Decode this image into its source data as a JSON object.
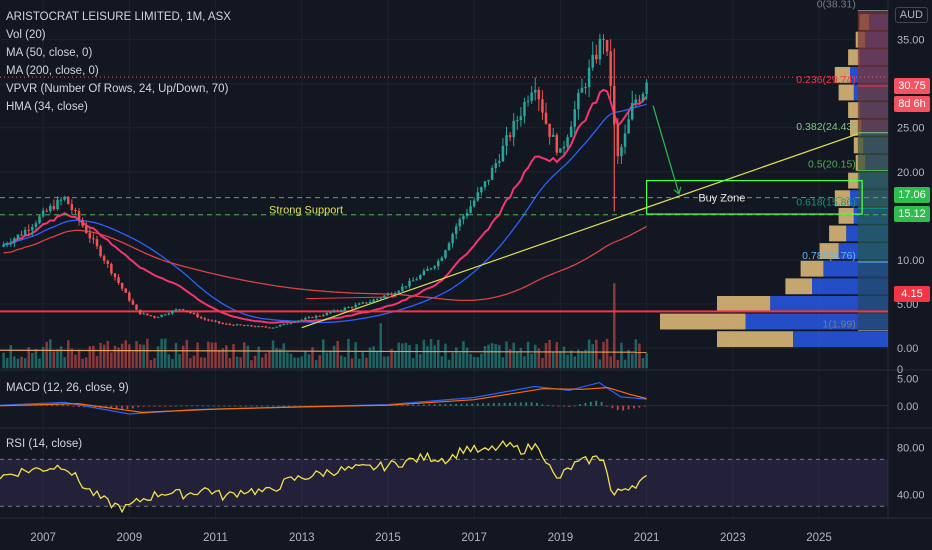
{
  "header": {
    "symbol_line": "ARISTOCRAT LEISURE LIMITED, 1M, ASX",
    "indicators": [
      "Vol (20)",
      "MA (50, close, 0)",
      "MA (200, close, 0)",
      "VPVR (Number Of Rows, 24, Up/Down, 70)",
      "HMA (34, close)"
    ]
  },
  "currency": "AUD",
  "price_tags": {
    "last": {
      "value": "30.75",
      "color": "#f7525f"
    },
    "countdown": {
      "value": "8d 6h",
      "color": "#f7525f"
    },
    "upper_support": {
      "value": "17.06",
      "color": "#2ebd4e"
    },
    "lower_support": {
      "value": "15.12",
      "color": "#2ebd4e"
    },
    "red_line": {
      "value": "4.15",
      "color": "#f23645"
    }
  },
  "chart_data": {
    "type": "candlestick",
    "x_ticks": [
      "2007",
      "2009",
      "2011",
      "2013",
      "2015",
      "2017",
      "2019",
      "2021",
      "2023",
      "2025"
    ],
    "x_range": [
      2006.0,
      2026.6
    ],
    "price_ticks": [
      "35.00",
      "30.00",
      "25.00",
      "20.00",
      "15.00",
      "10.00",
      "5.00",
      "0.00"
    ],
    "price_range": [
      -2.5,
      39.5
    ],
    "price_key_points": [
      [
        2006.0,
        11.5
      ],
      [
        2006.5,
        13.0
      ],
      [
        2007.2,
        16.0
      ],
      [
        2007.5,
        17.0
      ],
      [
        2007.9,
        14.0
      ],
      [
        2008.3,
        11.0
      ],
      [
        2008.8,
        7.0
      ],
      [
        2009.2,
        4.0
      ],
      [
        2009.6,
        3.5
      ],
      [
        2010.2,
        4.5
      ],
      [
        2010.7,
        3.3
      ],
      [
        2011.2,
        2.7
      ],
      [
        2011.8,
        2.5
      ],
      [
        2012.3,
        2.3
      ],
      [
        2012.8,
        3.0
      ],
      [
        2013.5,
        3.8
      ],
      [
        2014.0,
        4.5
      ],
      [
        2014.6,
        5.3
      ],
      [
        2015.2,
        6.5
      ],
      [
        2015.7,
        8.0
      ],
      [
        2016.2,
        10.0
      ],
      [
        2016.6,
        14.0
      ],
      [
        2016.9,
        16.0
      ],
      [
        2017.3,
        19.0
      ],
      [
        2017.7,
        23.0
      ],
      [
        2018.1,
        27.0
      ],
      [
        2018.4,
        30.5
      ],
      [
        2018.7,
        25.0
      ],
      [
        2019.0,
        22.0
      ],
      [
        2019.4,
        28.0
      ],
      [
        2019.8,
        33.0
      ],
      [
        2020.0,
        35.5
      ],
      [
        2020.2,
        29.0
      ],
      [
        2020.3,
        21.0
      ],
      [
        2020.5,
        24.0
      ],
      [
        2020.7,
        28.0
      ],
      [
        2020.9,
        29.0
      ],
      [
        2021.0,
        30.75
      ]
    ],
    "fib_levels": [
      {
        "label": "0(38.31)",
        "value": 38.31,
        "color": "#787b86"
      },
      {
        "label": "0.236(29.74)",
        "value": 29.74,
        "color": "#f23645"
      },
      {
        "label": "0.382(24.43)",
        "value": 24.43,
        "color": "#81c784"
      },
      {
        "label": "0.5(20.15)",
        "value": 20.15,
        "color": "#4caf50"
      },
      {
        "label": "0.618(15.86)",
        "value": 15.86,
        "color": "#089981"
      },
      {
        "label": "0.786(9.76)",
        "value": 9.76,
        "color": "#64b5f6"
      },
      {
        "label": "1(1.99)",
        "value": 1.99,
        "color": "#787b86"
      }
    ],
    "support_lines": [
      17.06,
      15.12
    ],
    "red_horizontal": 4.15,
    "annotations": {
      "strong_support": "Strong Support",
      "buy_zone": "Buy Zone"
    },
    "trendline": {
      "from": [
        2013.0,
        2.3
      ],
      "to": [
        2025.9,
        24.3
      ]
    },
    "volume_profile_rows": [
      {
        "price": 37,
        "up": 0.05,
        "down": 0.1
      },
      {
        "price": 35,
        "up": 0.05,
        "down": 0.12
      },
      {
        "price": 33,
        "up": 0.06,
        "down": 0.15
      },
      {
        "price": 31,
        "up": 0.08,
        "down": 0.2
      },
      {
        "price": 29,
        "up": 0.08,
        "down": 0.18
      },
      {
        "price": 27,
        "up": 0.06,
        "down": 0.15
      },
      {
        "price": 25,
        "up": 0.06,
        "down": 0.14
      },
      {
        "price": 23,
        "up": 0.05,
        "down": 0.13
      },
      {
        "price": 21,
        "up": 0.05,
        "down": 0.12
      },
      {
        "price": 19,
        "up": 0.06,
        "down": 0.15
      },
      {
        "price": 17,
        "up": 0.08,
        "down": 0.2
      },
      {
        "price": 15,
        "up": 0.08,
        "down": 0.18
      },
      {
        "price": 13,
        "up": 0.09,
        "down": 0.22
      },
      {
        "price": 11,
        "up": 0.1,
        "down": 0.26
      },
      {
        "price": 9,
        "up": 0.12,
        "down": 0.34
      },
      {
        "price": 7,
        "up": 0.14,
        "down": 0.4
      },
      {
        "price": 5,
        "up": 0.28,
        "down": 0.62
      },
      {
        "price": 3,
        "up": 0.45,
        "down": 0.75
      },
      {
        "price": 1,
        "up": 0.4,
        "down": 0.5
      }
    ],
    "volume_axis_tick": "0",
    "macd": {
      "label": "MACD (12, 26, close, 9)",
      "ticks": [
        "5.00",
        "0.00"
      ],
      "range": [
        -3.5,
        6.5
      ],
      "macd_points": [
        [
          2006.0,
          0.1
        ],
        [
          2007.5,
          0.6
        ],
        [
          2009.0,
          -1.5
        ],
        [
          2010.5,
          -0.7
        ],
        [
          2012.5,
          -0.3
        ],
        [
          2015.0,
          0.2
        ],
        [
          2017.0,
          1.5
        ],
        [
          2018.4,
          3.5
        ],
        [
          2019.2,
          2.8
        ],
        [
          2019.9,
          4.2
        ],
        [
          2020.4,
          1.6
        ],
        [
          2021.0,
          1.2
        ]
      ],
      "signal_points": [
        [
          2006.0,
          0.0
        ],
        [
          2007.8,
          0.4
        ],
        [
          2009.3,
          -1.2
        ],
        [
          2011.0,
          -0.6
        ],
        [
          2013.0,
          -0.2
        ],
        [
          2015.0,
          0.1
        ],
        [
          2017.0,
          1.1
        ],
        [
          2018.6,
          3.1
        ],
        [
          2019.5,
          3.0
        ],
        [
          2020.1,
          3.3
        ],
        [
          2020.6,
          2.1
        ],
        [
          2021.0,
          1.3
        ]
      ]
    },
    "rsi": {
      "label": "RSI (14, close)",
      "ticks": [
        "80.00",
        "40.00"
      ],
      "range": [
        20,
        95
      ],
      "upper_band": 70,
      "lower_band": 30,
      "points": [
        [
          2006.0,
          55
        ],
        [
          2006.5,
          60
        ],
        [
          2007.0,
          62
        ],
        [
          2007.5,
          65
        ],
        [
          2008.0,
          45
        ],
        [
          2008.5,
          33
        ],
        [
          2008.9,
          28
        ],
        [
          2009.3,
          36
        ],
        [
          2009.8,
          42
        ],
        [
          2010.3,
          40
        ],
        [
          2010.8,
          45
        ],
        [
          2011.2,
          38
        ],
        [
          2011.7,
          44
        ],
        [
          2012.2,
          42
        ],
        [
          2012.7,
          52
        ],
        [
          2013.2,
          56
        ],
        [
          2013.7,
          60
        ],
        [
          2014.3,
          62
        ],
        [
          2014.9,
          64
        ],
        [
          2015.4,
          68
        ],
        [
          2015.9,
          72
        ],
        [
          2016.4,
          70
        ],
        [
          2016.8,
          80
        ],
        [
          2017.2,
          76
        ],
        [
          2017.7,
          82
        ],
        [
          2018.1,
          78
        ],
        [
          2018.5,
          82
        ],
        [
          2018.9,
          52
        ],
        [
          2019.3,
          65
        ],
        [
          2019.7,
          70
        ],
        [
          2020.0,
          72
        ],
        [
          2020.2,
          38
        ],
        [
          2020.5,
          46
        ],
        [
          2020.8,
          50
        ],
        [
          2021.0,
          53
        ]
      ]
    }
  }
}
